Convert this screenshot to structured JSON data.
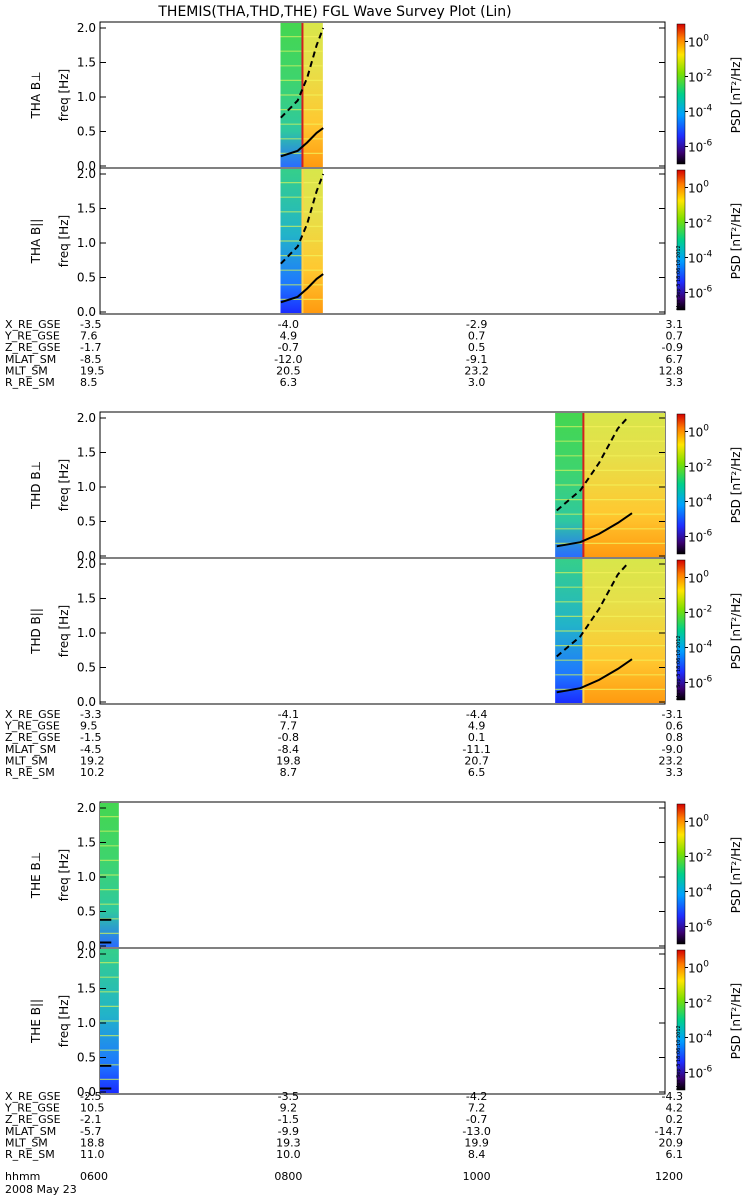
{
  "chart_data": {
    "type": "heatmap",
    "title": "THEMIS(THA,THD,THE) FGL Wave Survey Plot (Lin)",
    "date": "2008 May 23",
    "stamp": "Mon Sep  3 18:06:10 2012",
    "time_axis": {
      "label": "hhmm",
      "ticks": [
        "0600",
        "0800",
        "1000",
        "1200"
      ],
      "range": [
        "0600",
        "1200"
      ]
    },
    "freq_axis": {
      "label": "freq [Hz]",
      "range": [
        0,
        2.0
      ],
      "ticks": [
        "0.0",
        "0.5",
        "1.0",
        "1.5",
        "2.0"
      ]
    },
    "colorbar": {
      "label": "PSD [nT²/Hz]",
      "scale": "log",
      "ticks": [
        {
          "base": "10",
          "exp": "0",
          "value": 1
        },
        {
          "base": "10",
          "exp": "-2",
          "value": 0.01
        },
        {
          "base": "10",
          "exp": "-4",
          "value": 0.0001
        },
        {
          "base": "10",
          "exp": "-6",
          "value": 1e-06
        }
      ],
      "range": [
        1e-07,
        10
      ]
    },
    "groups": [
      {
        "probe": "THA",
        "panels": [
          {
            "label": "THA B⊥",
            "data_intervals": [
              {
                "start": "0755",
                "end": "0809",
                "style": "green"
              },
              {
                "start": "0809",
                "end": "0822",
                "style": "yellow"
              }
            ]
          },
          {
            "label": "THA B||",
            "data_intervals": [
              {
                "start": "0755",
                "end": "0809",
                "style": "blue"
              },
              {
                "start": "0809",
                "end": "0822",
                "style": "yellow"
              }
            ]
          }
        ],
        "curves": [
          {
            "name": "upper",
            "points": [
              [
                7.92,
                0.7
              ],
              [
                8.1,
                0.95
              ],
              [
                8.2,
                1.28
              ],
              [
                8.3,
                1.75
              ],
              [
                8.37,
                2.0
              ]
            ]
          },
          {
            "name": "lower",
            "points": [
              [
                7.92,
                0.14
              ],
              [
                8.1,
                0.22
              ],
              [
                8.2,
                0.34
              ],
              [
                8.3,
                0.48
              ],
              [
                8.37,
                0.55
              ]
            ]
          }
        ],
        "ephemeris": {
          "X_RE_GSE": [
            "-3.5",
            "-4.0",
            "-2.9",
            "3.1"
          ],
          "Y_RE_GSE": [
            "7.6",
            "4.9",
            "0.7",
            "0.7"
          ],
          "Z_RE_GSE": [
            "-1.7",
            "-0.7",
            "0.5",
            "-0.9"
          ],
          "MLAT_SM": [
            "-8.5",
            "-12.0",
            "-9.1",
            "6.7"
          ],
          "MLT_SM": [
            "19.5",
            "20.5",
            "23.2",
            "12.8"
          ],
          "R_RE_SM": [
            "8.5",
            "6.3",
            "3.0",
            "3.3"
          ]
        }
      },
      {
        "probe": "THD",
        "panels": [
          {
            "label": "THD B⊥",
            "data_intervals": [
              {
                "start": "1050",
                "end": "1108",
                "style": "green"
              },
              {
                "start": "1108",
                "end": "1200",
                "style": "yellow"
              }
            ]
          },
          {
            "label": "THD B||",
            "data_intervals": [
              {
                "start": "1050",
                "end": "1108",
                "style": "blue"
              },
              {
                "start": "1108",
                "end": "1200",
                "style": "yellow"
              }
            ]
          }
        ],
        "curves": [
          {
            "name": "upper",
            "points": [
              [
                10.85,
                0.66
              ],
              [
                11.1,
                0.95
              ],
              [
                11.3,
                1.35
              ],
              [
                11.5,
                1.85
              ],
              [
                11.6,
                2.0
              ]
            ]
          },
          {
            "name": "lower",
            "points": [
              [
                10.85,
                0.14
              ],
              [
                11.1,
                0.2
              ],
              [
                11.3,
                0.32
              ],
              [
                11.5,
                0.48
              ],
              [
                11.65,
                0.62
              ]
            ]
          }
        ],
        "ephemeris": {
          "X_RE_GSE": [
            "-3.3",
            "-4.1",
            "-4.4",
            "-3.1"
          ],
          "Y_RE_GSE": [
            "9.5",
            "7.7",
            "4.9",
            "0.6"
          ],
          "Z_RE_GSE": [
            "-1.5",
            "-0.8",
            "0.1",
            "0.8"
          ],
          "MLAT_SM": [
            "-4.5",
            "-8.4",
            "-11.1",
            "-9.0"
          ],
          "MLT_SM": [
            "19.2",
            "19.8",
            "20.7",
            "23.2"
          ],
          "R_RE_SM": [
            "10.2",
            "8.7",
            "6.5",
            "3.3"
          ]
        }
      },
      {
        "probe": "THE",
        "panels": [
          {
            "label": "THE B⊥",
            "data_intervals": [
              {
                "start": "0600",
                "end": "0612",
                "style": "green"
              }
            ]
          },
          {
            "label": "THE B||",
            "data_intervals": [
              {
                "start": "0600",
                "end": "0612",
                "style": "blue"
              }
            ]
          }
        ],
        "curves": [
          {
            "name": "upper",
            "points": [
              [
                6.0,
                0.38
              ],
              [
                6.12,
                0.38
              ]
            ]
          },
          {
            "name": "lower",
            "points": [
              [
                6.0,
                0.05
              ],
              [
                6.12,
                0.05
              ]
            ]
          }
        ],
        "ephemeris": {
          "X_RE_GSE": [
            "-2.5",
            "-3.5",
            "-4.2",
            "-4.3"
          ],
          "Y_RE_GSE": [
            "10.5",
            "9.2",
            "7.2",
            "4.2"
          ],
          "Z_RE_GSE": [
            "-2.1",
            "-1.5",
            "-0.7",
            "0.2"
          ],
          "MLAT_SM": [
            "-5.7",
            "-9.9",
            "-13.0",
            "-14.7"
          ],
          "MLT_SM": [
            "18.8",
            "19.3",
            "19.9",
            "20.9"
          ],
          "R_RE_SM": [
            "11.0",
            "10.0",
            "8.4",
            "6.1"
          ]
        }
      }
    ],
    "ephemeris_rows": [
      "X_RE_GSE",
      "Y_RE_GSE",
      "Z_RE_GSE",
      "MLAT_SM",
      "MLT_SM",
      "R_RE_SM"
    ]
  }
}
